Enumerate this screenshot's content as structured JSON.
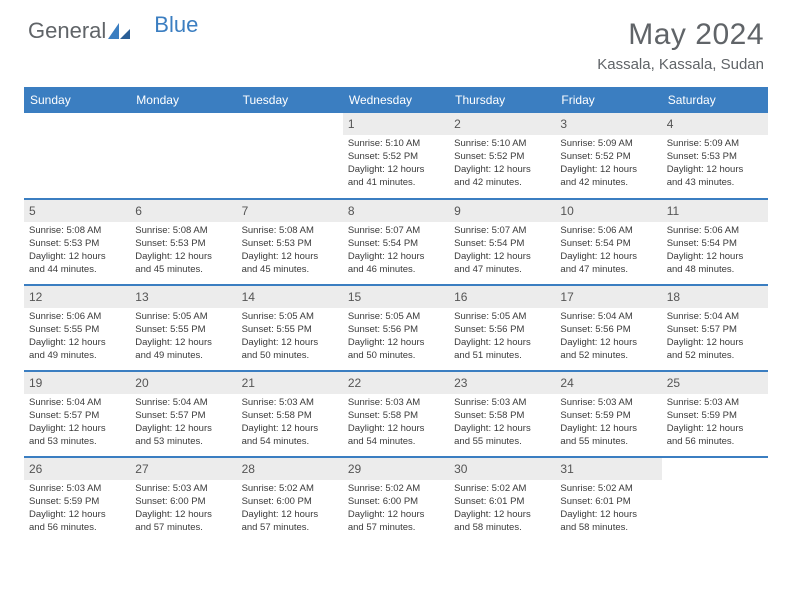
{
  "brand": {
    "primary": "General",
    "secondary": "Blue"
  },
  "colors": {
    "header_bg": "#3b7ec1",
    "header_text": "#ffffff",
    "text": "#3a3a3a",
    "muted": "#606468",
    "daynum_bg": "#ececec",
    "row_divider": "#3b7ec1",
    "page_bg": "#ffffff"
  },
  "title": "May 2024",
  "location": "Kassala, Kassala, Sudan",
  "day_headers": [
    "Sunday",
    "Monday",
    "Tuesday",
    "Wednesday",
    "Thursday",
    "Friday",
    "Saturday"
  ],
  "weeks": [
    [
      {
        "empty": true
      },
      {
        "empty": true
      },
      {
        "empty": true
      },
      {
        "n": "1",
        "sr": "Sunrise: 5:10 AM",
        "ss": "Sunset: 5:52 PM",
        "d1": "Daylight: 12 hours",
        "d2": "and 41 minutes."
      },
      {
        "n": "2",
        "sr": "Sunrise: 5:10 AM",
        "ss": "Sunset: 5:52 PM",
        "d1": "Daylight: 12 hours",
        "d2": "and 42 minutes."
      },
      {
        "n": "3",
        "sr": "Sunrise: 5:09 AM",
        "ss": "Sunset: 5:52 PM",
        "d1": "Daylight: 12 hours",
        "d2": "and 42 minutes."
      },
      {
        "n": "4",
        "sr": "Sunrise: 5:09 AM",
        "ss": "Sunset: 5:53 PM",
        "d1": "Daylight: 12 hours",
        "d2": "and 43 minutes."
      }
    ],
    [
      {
        "n": "5",
        "sr": "Sunrise: 5:08 AM",
        "ss": "Sunset: 5:53 PM",
        "d1": "Daylight: 12 hours",
        "d2": "and 44 minutes."
      },
      {
        "n": "6",
        "sr": "Sunrise: 5:08 AM",
        "ss": "Sunset: 5:53 PM",
        "d1": "Daylight: 12 hours",
        "d2": "and 45 minutes."
      },
      {
        "n": "7",
        "sr": "Sunrise: 5:08 AM",
        "ss": "Sunset: 5:53 PM",
        "d1": "Daylight: 12 hours",
        "d2": "and 45 minutes."
      },
      {
        "n": "8",
        "sr": "Sunrise: 5:07 AM",
        "ss": "Sunset: 5:54 PM",
        "d1": "Daylight: 12 hours",
        "d2": "and 46 minutes."
      },
      {
        "n": "9",
        "sr": "Sunrise: 5:07 AM",
        "ss": "Sunset: 5:54 PM",
        "d1": "Daylight: 12 hours",
        "d2": "and 47 minutes."
      },
      {
        "n": "10",
        "sr": "Sunrise: 5:06 AM",
        "ss": "Sunset: 5:54 PM",
        "d1": "Daylight: 12 hours",
        "d2": "and 47 minutes."
      },
      {
        "n": "11",
        "sr": "Sunrise: 5:06 AM",
        "ss": "Sunset: 5:54 PM",
        "d1": "Daylight: 12 hours",
        "d2": "and 48 minutes."
      }
    ],
    [
      {
        "n": "12",
        "sr": "Sunrise: 5:06 AM",
        "ss": "Sunset: 5:55 PM",
        "d1": "Daylight: 12 hours",
        "d2": "and 49 minutes."
      },
      {
        "n": "13",
        "sr": "Sunrise: 5:05 AM",
        "ss": "Sunset: 5:55 PM",
        "d1": "Daylight: 12 hours",
        "d2": "and 49 minutes."
      },
      {
        "n": "14",
        "sr": "Sunrise: 5:05 AM",
        "ss": "Sunset: 5:55 PM",
        "d1": "Daylight: 12 hours",
        "d2": "and 50 minutes."
      },
      {
        "n": "15",
        "sr": "Sunrise: 5:05 AM",
        "ss": "Sunset: 5:56 PM",
        "d1": "Daylight: 12 hours",
        "d2": "and 50 minutes."
      },
      {
        "n": "16",
        "sr": "Sunrise: 5:05 AM",
        "ss": "Sunset: 5:56 PM",
        "d1": "Daylight: 12 hours",
        "d2": "and 51 minutes."
      },
      {
        "n": "17",
        "sr": "Sunrise: 5:04 AM",
        "ss": "Sunset: 5:56 PM",
        "d1": "Daylight: 12 hours",
        "d2": "and 52 minutes."
      },
      {
        "n": "18",
        "sr": "Sunrise: 5:04 AM",
        "ss": "Sunset: 5:57 PM",
        "d1": "Daylight: 12 hours",
        "d2": "and 52 minutes."
      }
    ],
    [
      {
        "n": "19",
        "sr": "Sunrise: 5:04 AM",
        "ss": "Sunset: 5:57 PM",
        "d1": "Daylight: 12 hours",
        "d2": "and 53 minutes."
      },
      {
        "n": "20",
        "sr": "Sunrise: 5:04 AM",
        "ss": "Sunset: 5:57 PM",
        "d1": "Daylight: 12 hours",
        "d2": "and 53 minutes."
      },
      {
        "n": "21",
        "sr": "Sunrise: 5:03 AM",
        "ss": "Sunset: 5:58 PM",
        "d1": "Daylight: 12 hours",
        "d2": "and 54 minutes."
      },
      {
        "n": "22",
        "sr": "Sunrise: 5:03 AM",
        "ss": "Sunset: 5:58 PM",
        "d1": "Daylight: 12 hours",
        "d2": "and 54 minutes."
      },
      {
        "n": "23",
        "sr": "Sunrise: 5:03 AM",
        "ss": "Sunset: 5:58 PM",
        "d1": "Daylight: 12 hours",
        "d2": "and 55 minutes."
      },
      {
        "n": "24",
        "sr": "Sunrise: 5:03 AM",
        "ss": "Sunset: 5:59 PM",
        "d1": "Daylight: 12 hours",
        "d2": "and 55 minutes."
      },
      {
        "n": "25",
        "sr": "Sunrise: 5:03 AM",
        "ss": "Sunset: 5:59 PM",
        "d1": "Daylight: 12 hours",
        "d2": "and 56 minutes."
      }
    ],
    [
      {
        "n": "26",
        "sr": "Sunrise: 5:03 AM",
        "ss": "Sunset: 5:59 PM",
        "d1": "Daylight: 12 hours",
        "d2": "and 56 minutes."
      },
      {
        "n": "27",
        "sr": "Sunrise: 5:03 AM",
        "ss": "Sunset: 6:00 PM",
        "d1": "Daylight: 12 hours",
        "d2": "and 57 minutes."
      },
      {
        "n": "28",
        "sr": "Sunrise: 5:02 AM",
        "ss": "Sunset: 6:00 PM",
        "d1": "Daylight: 12 hours",
        "d2": "and 57 minutes."
      },
      {
        "n": "29",
        "sr": "Sunrise: 5:02 AM",
        "ss": "Sunset: 6:00 PM",
        "d1": "Daylight: 12 hours",
        "d2": "and 57 minutes."
      },
      {
        "n": "30",
        "sr": "Sunrise: 5:02 AM",
        "ss": "Sunset: 6:01 PM",
        "d1": "Daylight: 12 hours",
        "d2": "and 58 minutes."
      },
      {
        "n": "31",
        "sr": "Sunrise: 5:02 AM",
        "ss": "Sunset: 6:01 PM",
        "d1": "Daylight: 12 hours",
        "d2": "and 58 minutes."
      },
      {
        "empty": true
      }
    ]
  ]
}
